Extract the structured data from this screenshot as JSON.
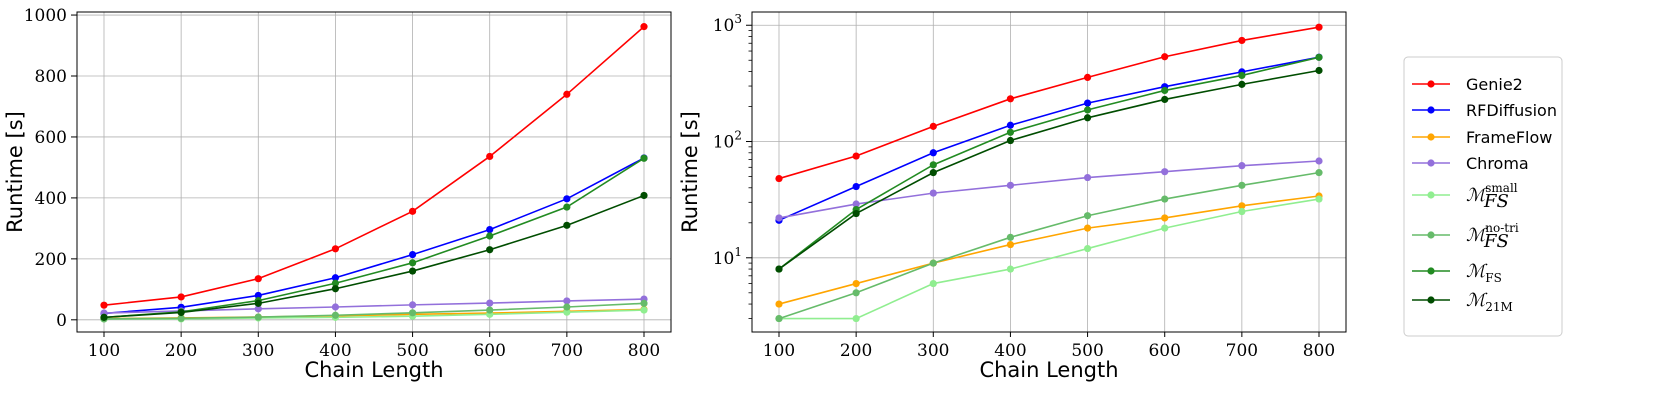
{
  "legend": {
    "entries": [
      {
        "key": "genie2",
        "label": "Genie2",
        "type": "text"
      },
      {
        "key": "rfdiffusion",
        "label": "RFDiffusion",
        "type": "text"
      },
      {
        "key": "frameflow",
        "label": "FrameFlow",
        "type": "text"
      },
      {
        "key": "chroma",
        "label": "Chroma",
        "type": "text"
      },
      {
        "key": "mfs_small",
        "label": "ℳ",
        "sub": "FS",
        "sup": "small",
        "type": "math"
      },
      {
        "key": "mfs_notri",
        "label": "ℳ",
        "sub": "FS",
        "sup": "no-tri",
        "type": "math"
      },
      {
        "key": "mfs",
        "label": "ℳ",
        "sub": "FS",
        "sup": "",
        "type": "math"
      },
      {
        "key": "m21m",
        "label": "ℳ",
        "sub": "21M",
        "sup": "",
        "type": "math"
      }
    ]
  },
  "chart_data": [
    {
      "type": "line",
      "title": "",
      "xlabel": "Chain Length",
      "ylabel": "Runtime [s]",
      "yscale": "linear",
      "x": [
        100,
        200,
        300,
        400,
        500,
        600,
        700,
        800
      ],
      "xlim": [
        65,
        835
      ],
      "ylim": [
        -40,
        1010
      ],
      "xticks": [
        100,
        200,
        300,
        400,
        500,
        600,
        700,
        800
      ],
      "yticks": [
        0,
        200,
        400,
        600,
        800,
        1000
      ],
      "ytick_labels": [
        "0",
        "200",
        "400",
        "600",
        "800",
        "1000"
      ],
      "grid": true,
      "series": [
        {
          "key": "genie2",
          "name": "Genie2",
          "color": "#ff0000",
          "values": [
            48,
            75,
            135,
            233,
            356,
            536,
            740,
            962
          ]
        },
        {
          "key": "rfdiffusion",
          "name": "RFDiffusion",
          "color": "#0000ff",
          "values": [
            21,
            41,
            80,
            138,
            214,
            296,
            397,
            531
          ]
        },
        {
          "key": "frameflow",
          "name": "FrameFlow",
          "color": "#ffa500",
          "values": [
            4,
            6,
            9,
            13,
            18,
            22,
            28,
            34
          ]
        },
        {
          "key": "chroma",
          "name": "Chroma",
          "color": "#9370db",
          "values": [
            22,
            29,
            36,
            42,
            49,
            55,
            62,
            68
          ]
        },
        {
          "key": "mfs_small",
          "name": "M_FS^small",
          "color": "#90ee90",
          "values": [
            3,
            3,
            6,
            8,
            12,
            18,
            25,
            32
          ]
        },
        {
          "key": "mfs_notri",
          "name": "M_FS^no-tri",
          "color": "#66bb6a",
          "values": [
            3,
            5,
            9,
            15,
            23,
            32,
            42,
            54
          ]
        },
        {
          "key": "mfs",
          "name": "M_FS",
          "color": "#228b22",
          "values": [
            8,
            26,
            63,
            120,
            187,
            275,
            370,
            530
          ]
        },
        {
          "key": "m21m",
          "name": "M_21M",
          "color": "#004d00",
          "values": [
            8,
            24,
            54,
            102,
            160,
            230,
            310,
            408
          ]
        }
      ]
    },
    {
      "type": "line",
      "title": "",
      "xlabel": "Chain Length",
      "ylabel": "Runtime [s]",
      "yscale": "log",
      "x": [
        100,
        200,
        300,
        400,
        500,
        600,
        700,
        800
      ],
      "xlim": [
        65,
        835
      ],
      "ylim": [
        2.3,
        1300
      ],
      "xticks": [
        100,
        200,
        300,
        400,
        500,
        600,
        700,
        800
      ],
      "yticks": [
        10,
        100,
        1000
      ],
      "ytick_labels": [
        {
          "base": "10",
          "exp": "1"
        },
        {
          "base": "10",
          "exp": "2"
        },
        {
          "base": "10",
          "exp": "3"
        }
      ],
      "grid": true,
      "series": [
        {
          "key": "genie2",
          "name": "Genie2",
          "color": "#ff0000",
          "values": [
            48,
            75,
            135,
            233,
            356,
            536,
            740,
            962
          ]
        },
        {
          "key": "rfdiffusion",
          "name": "RFDiffusion",
          "color": "#0000ff",
          "values": [
            21,
            41,
            80,
            138,
            214,
            296,
            397,
            531
          ]
        },
        {
          "key": "frameflow",
          "name": "FrameFlow",
          "color": "#ffa500",
          "values": [
            4,
            6,
            9,
            13,
            18,
            22,
            28,
            34
          ]
        },
        {
          "key": "chroma",
          "name": "Chroma",
          "color": "#9370db",
          "values": [
            22,
            29,
            36,
            42,
            49,
            55,
            62,
            68
          ]
        },
        {
          "key": "mfs_small",
          "name": "M_FS^small",
          "color": "#90ee90",
          "values": [
            3,
            3,
            6,
            8,
            12,
            18,
            25,
            32
          ]
        },
        {
          "key": "mfs_notri",
          "name": "M_FS^no-tri",
          "color": "#66bb6a",
          "values": [
            3,
            5,
            9,
            15,
            23,
            32,
            42,
            54
          ]
        },
        {
          "key": "mfs",
          "name": "M_FS",
          "color": "#228b22",
          "values": [
            8,
            26,
            63,
            120,
            187,
            275,
            370,
            530
          ]
        },
        {
          "key": "m21m",
          "name": "M_21M",
          "color": "#004d00",
          "values": [
            8,
            24,
            54,
            102,
            160,
            230,
            310,
            408
          ]
        }
      ]
    }
  ]
}
